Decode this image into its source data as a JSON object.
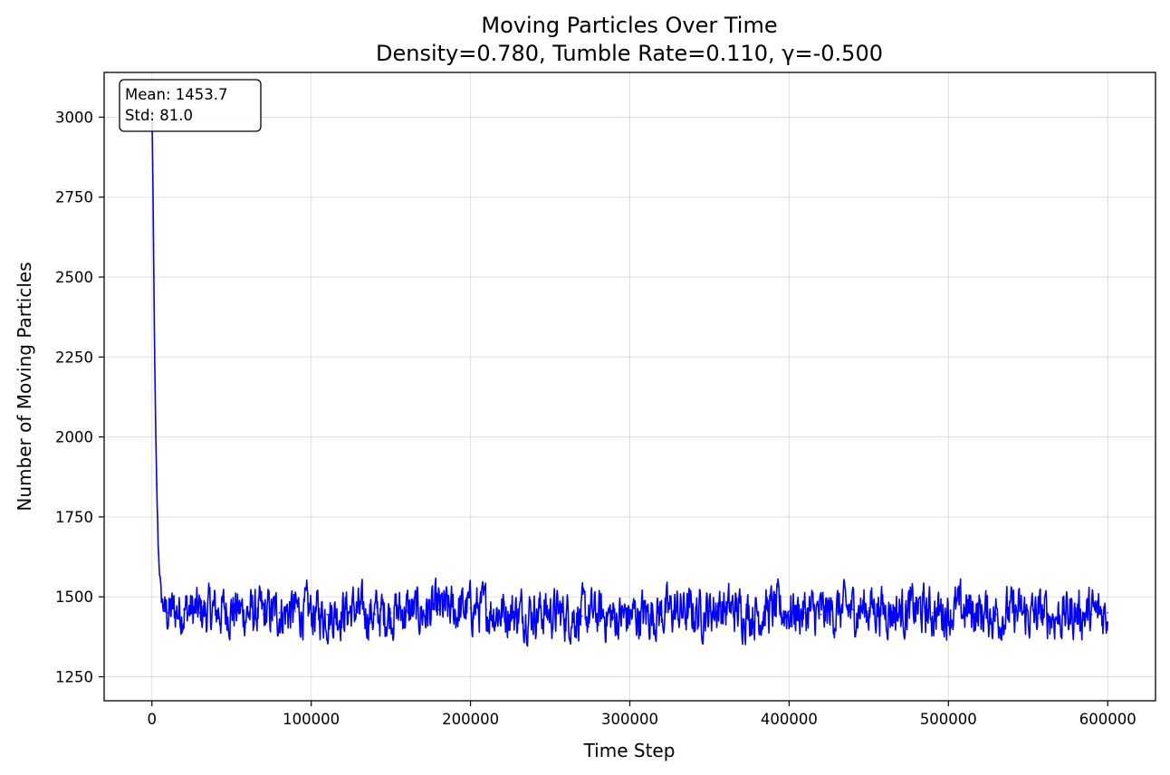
{
  "chart_data": {
    "type": "line",
    "title": "Moving Particles Over Time",
    "subtitle": "Density=0.780, Tumble Rate=0.110, γ=-0.500",
    "xlabel": "Time Step",
    "ylabel": "Number of Moving Particles",
    "xlim": [
      -30000,
      630000
    ],
    "ylim": [
      1175,
      3140
    ],
    "x_ticks": [
      0,
      100000,
      200000,
      300000,
      400000,
      500000,
      600000
    ],
    "y_ticks": [
      1250,
      1500,
      1750,
      2000,
      2250,
      2500,
      2750,
      3000
    ],
    "x_tick_labels": [
      "0",
      "100000",
      "200000",
      "300000",
      "400000",
      "500000",
      "600000"
    ],
    "y_tick_labels": [
      "1250",
      "1500",
      "1750",
      "2000",
      "2250",
      "2500",
      "2750",
      "3000"
    ],
    "grid": true,
    "series": [
      {
        "color": "#0000ff",
        "x": [
          0,
          500,
          1000,
          1500,
          2000,
          2500,
          3000,
          3500,
          4000,
          5000,
          6000,
          7000,
          8000,
          10000,
          15000,
          20000,
          30000,
          40000,
          50000,
          60000,
          70000,
          80000,
          90000,
          100000,
          110000,
          120000,
          128000,
          130000,
          140000,
          150000,
          160000,
          170000,
          180000,
          190000,
          200000,
          210000,
          220000,
          230000,
          240000,
          250000,
          260000,
          270000,
          280000,
          290000,
          300000,
          310000,
          320000,
          330000,
          340000,
          350000,
          355000,
          360000,
          370000,
          380000,
          390000,
          400000,
          410000,
          420000,
          430000,
          440000,
          450000,
          452000,
          460000,
          470000,
          480000,
          490000,
          500000,
          510000,
          520000,
          530000,
          540000,
          550000,
          560000,
          570000,
          580000,
          590000,
          600000
        ],
        "values": [
          3020,
          2850,
          2600,
          2350,
          2150,
          1980,
          1850,
          1750,
          1650,
          1560,
          1500,
          1470,
          1455,
          1450,
          1455,
          1460,
          1450,
          1455,
          1460,
          1450,
          1445,
          1450,
          1455,
          1450,
          1445,
          1455,
          1460,
          1450,
          1445,
          1450,
          1455,
          1450,
          1460,
          1455,
          1465,
          1460,
          1455,
          1450,
          1455,
          1450,
          1445,
          1440,
          1445,
          1435,
          1440,
          1445,
          1450,
          1455,
          1450,
          1455,
          1470,
          1460,
          1455,
          1450,
          1460,
          1455,
          1450,
          1445,
          1455,
          1460,
          1465,
          1470,
          1460,
          1455,
          1460,
          1450,
          1455,
          1460,
          1450,
          1445,
          1450,
          1440,
          1445,
          1440,
          1450,
          1445,
          1450
        ],
        "range_low": 1270,
        "range_high": 1640
      }
    ],
    "annotation": {
      "lines": [
        "Mean: 1453.7",
        "Std: 81.0"
      ],
      "placement": "top-left"
    }
  }
}
